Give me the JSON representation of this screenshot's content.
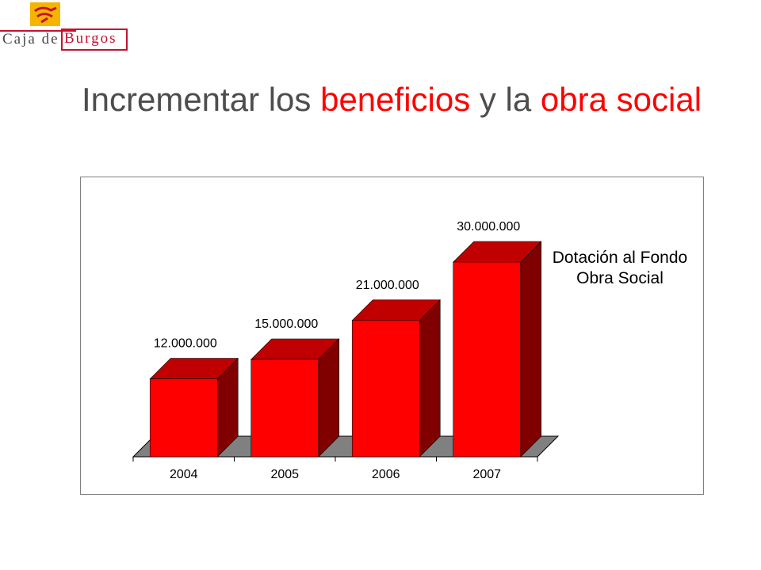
{
  "brand": {
    "logo_word_1": "Caja de",
    "logo_word_2": "Burgos"
  },
  "title": {
    "part1": "Incrementar los ",
    "part2": "beneficios",
    "part3": " y la ",
    "part4": "obra social"
  },
  "colors": {
    "accent": "#ff0000",
    "bar_front": "#ff0000",
    "bar_top": "#c00000",
    "bar_side": "#800000",
    "floor": "#808080",
    "title_text": "#4d4d4d"
  },
  "chart_data": {
    "type": "bar",
    "categories": [
      "2004",
      "2005",
      "2006",
      "2007"
    ],
    "values": [
      12000000,
      15000000,
      21000000,
      30000000
    ],
    "data_labels": [
      "12.000.000",
      "15.000.000",
      "21.000.000",
      "30.000.000"
    ],
    "legend_label_line1": "Dotación al Fondo",
    "legend_label_line2": "Obra Social",
    "ylim": [
      0,
      30000000
    ],
    "grid": false,
    "style": "3d",
    "legend_position": "right"
  }
}
